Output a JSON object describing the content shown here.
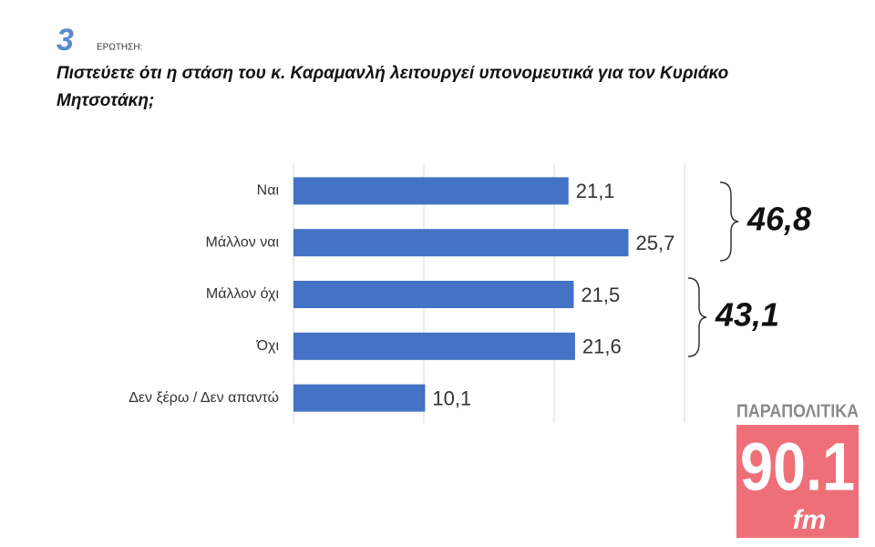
{
  "chart_data": {
    "type": "barh",
    "question_number": "3",
    "question_label": "ΕΡΩΤΗΣΗ:",
    "title": "Πιστεύετε ότι η στάση του κ. Καραμανλή λειτουργεί υπονομευτικά για τον Κυριάκο Μητσοτάκη;",
    "categories": [
      "Ναι",
      "Μάλλον ναι",
      "Μάλλον όχι",
      "Όχι",
      "Δεν ξέρω / Δεν απαντώ"
    ],
    "values": [
      21.1,
      25.7,
      21.5,
      21.6,
      10.1
    ],
    "value_labels": [
      "21,1",
      "25,7",
      "21,5",
      "21,6",
      "10,1"
    ],
    "color": "#4472c4",
    "xlim": [
      0,
      30
    ],
    "xticks": [
      0,
      10,
      20,
      30
    ],
    "grid": true,
    "annotations": [
      "46,8",
      "43,1"
    ]
  },
  "logo": {
    "top": "ΠΑΡΑΠΟΛΙΤΙΚΑ",
    "main": "90.1",
    "sub": "fm"
  }
}
